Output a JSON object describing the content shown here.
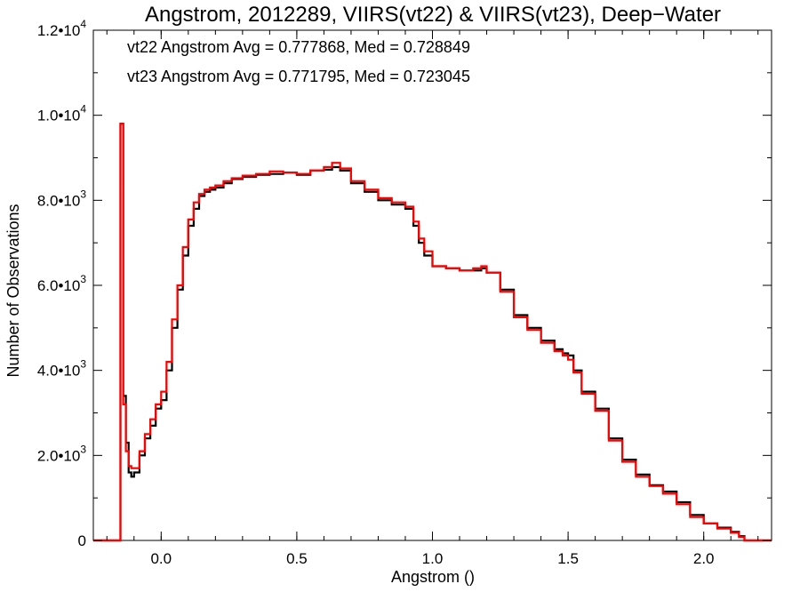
{
  "chart_data": {
    "type": "line",
    "title": "Angstrom, 2012289, VIIRS(vt22) & VIIRS(vt23), Deep−Water",
    "xlabel": "Angstrom ()",
    "ylabel": "Number of Observations",
    "xlim": [
      -0.25,
      2.25
    ],
    "ylim": [
      0,
      12000
    ],
    "x_ticks": [
      {
        "value": 0.0,
        "label": "0.0"
      },
      {
        "value": 0.5,
        "label": "0.5"
      },
      {
        "value": 1.0,
        "label": "1.0"
      },
      {
        "value": 1.5,
        "label": "1.5"
      },
      {
        "value": 2.0,
        "label": "2.0"
      }
    ],
    "y_ticks": [
      {
        "value": 0,
        "mant": "0",
        "exp": ""
      },
      {
        "value": 2000,
        "mant": "2.0•10",
        "exp": "3"
      },
      {
        "value": 4000,
        "mant": "4.0•10",
        "exp": "3"
      },
      {
        "value": 6000,
        "mant": "6.0•10",
        "exp": "3"
      },
      {
        "value": 8000,
        "mant": "8.0•10",
        "exp": "3"
      },
      {
        "value": 10000,
        "mant": "1.0•10",
        "exp": "4"
      },
      {
        "value": 12000,
        "mant": "1.2•10",
        "exp": "4"
      }
    ],
    "annotations": [
      {
        "text": "vt22 Angstrom Avg = 0.777868, Med = 0.728849",
        "color": "#000000"
      },
      {
        "text": "vt23 Angstrom Avg = 0.771795, Med = 0.723045",
        "color": "#ff0000"
      }
    ],
    "series": [
      {
        "color": "#000000",
        "x": [
          -0.25,
          -0.15,
          -0.14,
          -0.13,
          -0.12,
          -0.11,
          -0.1,
          -0.08,
          -0.06,
          -0.04,
          -0.02,
          0.0,
          0.02,
          0.04,
          0.06,
          0.08,
          0.1,
          0.12,
          0.14,
          0.16,
          0.18,
          0.2,
          0.23,
          0.26,
          0.3,
          0.35,
          0.4,
          0.45,
          0.5,
          0.55,
          0.6,
          0.63,
          0.66,
          0.7,
          0.75,
          0.8,
          0.85,
          0.9,
          0.93,
          0.95,
          0.97,
          1.0,
          1.05,
          1.1,
          1.15,
          1.18,
          1.2,
          1.25,
          1.3,
          1.35,
          1.4,
          1.45,
          1.48,
          1.5,
          1.52,
          1.55,
          1.6,
          1.65,
          1.7,
          1.75,
          1.8,
          1.85,
          1.9,
          1.95,
          2.0,
          2.05,
          2.1,
          2.13,
          2.15,
          2.25
        ],
        "values": [
          0,
          9800,
          3400,
          2300,
          1600,
          1500,
          1600,
          2000,
          2400,
          2700,
          3100,
          3300,
          4000,
          5000,
          5900,
          6700,
          7400,
          7800,
          8100,
          8200,
          8250,
          8300,
          8400,
          8500,
          8550,
          8600,
          8620,
          8650,
          8600,
          8700,
          8720,
          8780,
          8700,
          8400,
          8200,
          8000,
          7900,
          7800,
          7400,
          7000,
          6700,
          6450,
          6400,
          6350,
          6350,
          6400,
          6300,
          5900,
          5300,
          5000,
          4700,
          4500,
          4400,
          4350,
          4000,
          3500,
          3100,
          2400,
          1900,
          1550,
          1300,
          1150,
          900,
          600,
          400,
          300,
          200,
          100,
          0,
          0
        ]
      },
      {
        "color": "#ff0000",
        "x": [
          -0.25,
          -0.15,
          -0.14,
          -0.13,
          -0.12,
          -0.11,
          -0.1,
          -0.08,
          -0.06,
          -0.04,
          -0.02,
          0.0,
          0.02,
          0.04,
          0.06,
          0.08,
          0.1,
          0.12,
          0.14,
          0.16,
          0.18,
          0.2,
          0.23,
          0.26,
          0.3,
          0.35,
          0.4,
          0.45,
          0.5,
          0.55,
          0.6,
          0.63,
          0.66,
          0.7,
          0.75,
          0.8,
          0.85,
          0.9,
          0.93,
          0.95,
          0.97,
          1.0,
          1.05,
          1.1,
          1.15,
          1.18,
          1.2,
          1.25,
          1.3,
          1.35,
          1.4,
          1.45,
          1.48,
          1.5,
          1.52,
          1.55,
          1.6,
          1.65,
          1.7,
          1.75,
          1.8,
          1.85,
          1.9,
          1.95,
          2.0,
          2.05,
          2.1,
          2.13,
          2.15,
          2.25
        ],
        "values": [
          0,
          9800,
          3200,
          2100,
          1750,
          1700,
          1700,
          2100,
          2500,
          2850,
          3200,
          3500,
          4200,
          5200,
          6000,
          6900,
          7550,
          7950,
          8150,
          8250,
          8300,
          8350,
          8450,
          8520,
          8580,
          8620,
          8680,
          8650,
          8620,
          8700,
          8780,
          8880,
          8750,
          8450,
          8250,
          8050,
          7950,
          7850,
          7500,
          7100,
          6800,
          6450,
          6400,
          6350,
          6400,
          6450,
          6300,
          5850,
          5250,
          4950,
          4650,
          4450,
          4350,
          4250,
          3950,
          3450,
          3050,
          2350,
          1850,
          1500,
          1280,
          1100,
          850,
          550,
          400,
          280,
          180,
          80,
          0,
          0
        ]
      }
    ]
  }
}
